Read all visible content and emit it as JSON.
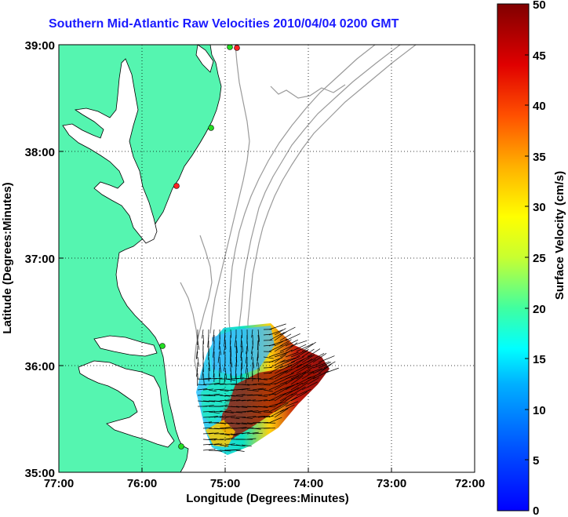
{
  "title": "Southern Mid-Atlantic Raw Velocities 2010/04/04 0200 GMT",
  "map": {
    "x_axis": {
      "label": "Longitude (Degrees:Minutes)",
      "ticks": [
        "77:00",
        "76:00",
        "75:00",
        "74:00",
        "73:00",
        "72:00"
      ]
    },
    "y_axis": {
      "label": "Latitude (Degrees:Minutes)",
      "ticks": [
        "39:00",
        "38:00",
        "37:00",
        "36:00",
        "35:00"
      ]
    },
    "land_color": "#55f5b0",
    "contour_color": "#9a9a9a",
    "grid": "dotted"
  },
  "colorbar": {
    "label": "Surface Velocity (cm/s)",
    "ticks": [
      "50",
      "45",
      "40",
      "35",
      "30",
      "25",
      "20",
      "15",
      "10",
      "5",
      "0"
    ],
    "colormap": "jet"
  }
}
